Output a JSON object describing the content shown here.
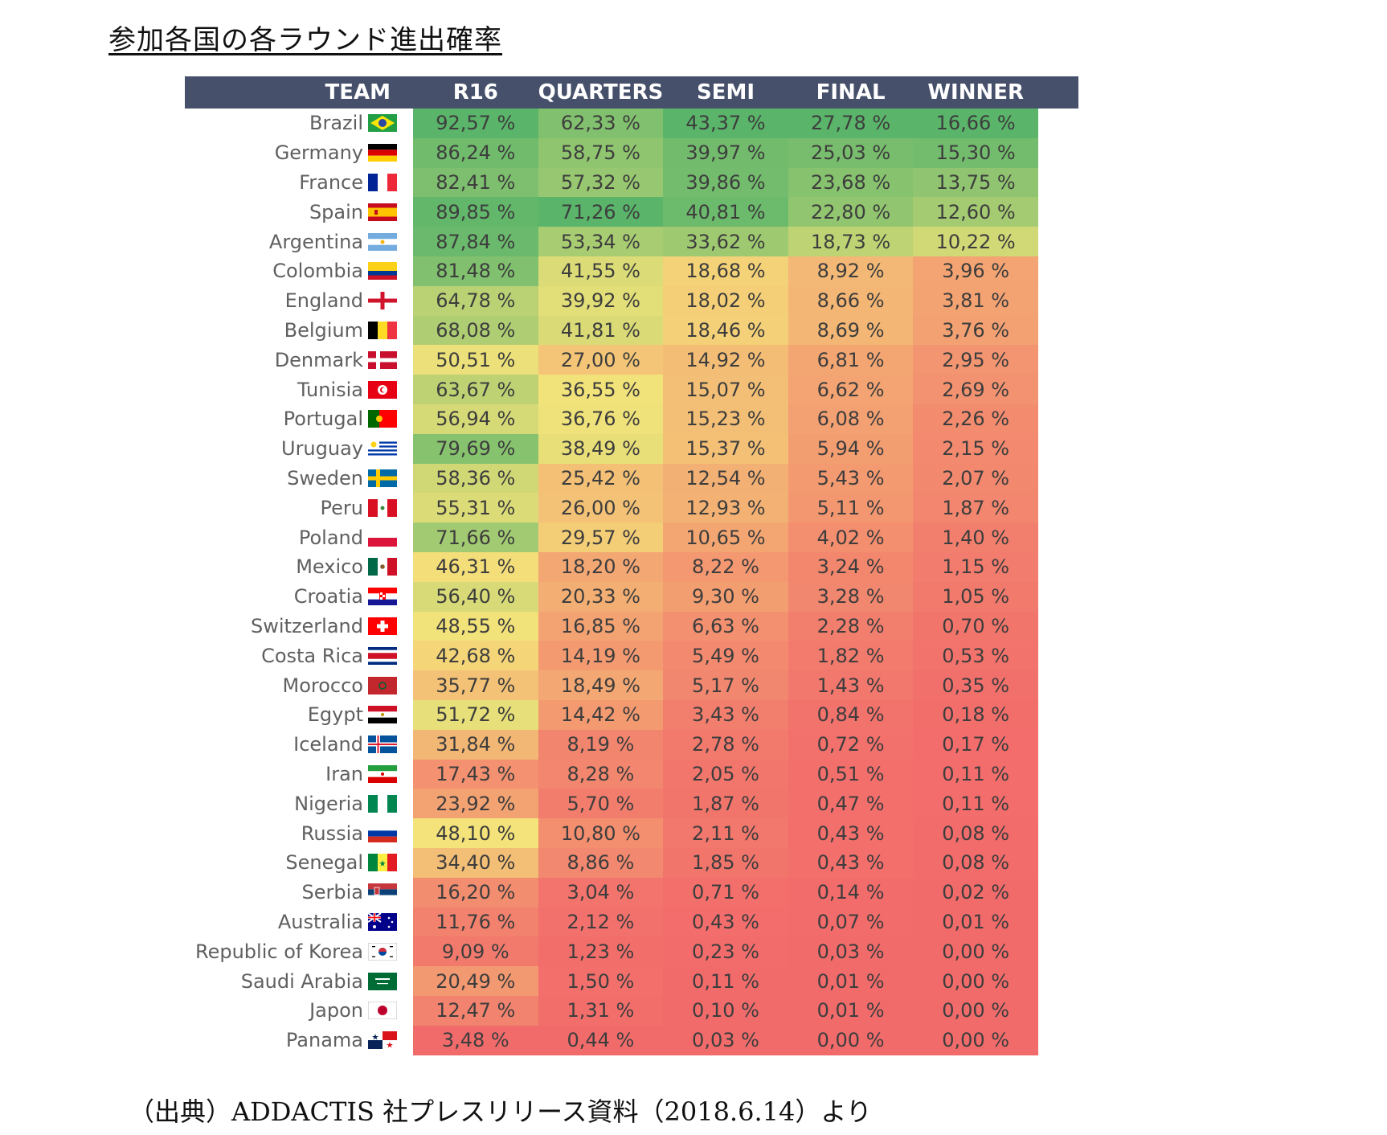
{
  "page": {
    "title": "参加各国の各ラウンド進出確率",
    "source": "（出典）ADDACTIS 社プレスリリース資料（2018.6.14）より"
  },
  "colors": {
    "header_bg": "#46506a",
    "scale_high": "#5ab46a",
    "scale_mid": "#f4e37a",
    "scale_low": "#f26b6b"
  },
  "chart_data": {
    "type": "table",
    "title": "参加各国の各ラウンド進出確率",
    "columns": [
      "TEAM",
      "R16",
      "QUARTERS",
      "SEMI",
      "FINAL",
      "WINNER"
    ],
    "value_suffix": " %",
    "rows": [
      {
        "team": "Brazil",
        "flag": "brazil-flag-icon",
        "values": [
          "92,57",
          "62,33",
          "43,37",
          "27,78",
          "16,66"
        ]
      },
      {
        "team": "Germany",
        "flag": "germany-flag-icon",
        "values": [
          "86,24",
          "58,75",
          "39,97",
          "25,03",
          "15,30"
        ]
      },
      {
        "team": "France",
        "flag": "france-flag-icon",
        "values": [
          "82,41",
          "57,32",
          "39,86",
          "23,68",
          "13,75"
        ]
      },
      {
        "team": "Spain",
        "flag": "spain-flag-icon",
        "values": [
          "89,85",
          "71,26",
          "40,81",
          "22,80",
          "12,60"
        ]
      },
      {
        "team": "Argentina",
        "flag": "argentina-flag-icon",
        "values": [
          "87,84",
          "53,34",
          "33,62",
          "18,73",
          "10,22"
        ]
      },
      {
        "team": "Colombia",
        "flag": "colombia-flag-icon",
        "values": [
          "81,48",
          "41,55",
          "18,68",
          "8,92",
          "3,96"
        ]
      },
      {
        "team": "England",
        "flag": "england-flag-icon",
        "values": [
          "64,78",
          "39,92",
          "18,02",
          "8,66",
          "3,81"
        ]
      },
      {
        "team": "Belgium",
        "flag": "belgium-flag-icon",
        "values": [
          "68,08",
          "41,81",
          "18,46",
          "8,69",
          "3,76"
        ]
      },
      {
        "team": "Denmark",
        "flag": "denmark-flag-icon",
        "values": [
          "50,51",
          "27,00",
          "14,92",
          "6,81",
          "2,95"
        ]
      },
      {
        "team": "Tunisia",
        "flag": "tunisia-flag-icon",
        "values": [
          "63,67",
          "36,55",
          "15,07",
          "6,62",
          "2,69"
        ]
      },
      {
        "team": "Portugal",
        "flag": "portugal-flag-icon",
        "values": [
          "56,94",
          "36,76",
          "15,23",
          "6,08",
          "2,26"
        ]
      },
      {
        "team": "Uruguay",
        "flag": "uruguay-flag-icon",
        "values": [
          "79,69",
          "38,49",
          "15,37",
          "5,94",
          "2,15"
        ]
      },
      {
        "team": "Sweden",
        "flag": "sweden-flag-icon",
        "values": [
          "58,36",
          "25,42",
          "12,54",
          "5,43",
          "2,07"
        ]
      },
      {
        "team": "Peru",
        "flag": "peru-flag-icon",
        "values": [
          "55,31",
          "26,00",
          "12,93",
          "5,11",
          "1,87"
        ]
      },
      {
        "team": "Poland",
        "flag": "poland-flag-icon",
        "values": [
          "71,66",
          "29,57",
          "10,65",
          "4,02",
          "1,40"
        ]
      },
      {
        "team": "Mexico",
        "flag": "mexico-flag-icon",
        "values": [
          "46,31",
          "18,20",
          "8,22",
          "3,24",
          "1,15"
        ]
      },
      {
        "team": "Croatia",
        "flag": "croatia-flag-icon",
        "values": [
          "56,40",
          "20,33",
          "9,30",
          "3,28",
          "1,05"
        ]
      },
      {
        "team": "Switzerland",
        "flag": "switzerland-flag-icon",
        "values": [
          "48,55",
          "16,85",
          "6,63",
          "2,28",
          "0,70"
        ]
      },
      {
        "team": "Costa Rica",
        "flag": "costa-rica-flag-icon",
        "values": [
          "42,68",
          "14,19",
          "5,49",
          "1,82",
          "0,53"
        ]
      },
      {
        "team": "Morocco",
        "flag": "morocco-flag-icon",
        "values": [
          "35,77",
          "18,49",
          "5,17",
          "1,43",
          "0,35"
        ]
      },
      {
        "team": "Egypt",
        "flag": "egypt-flag-icon",
        "values": [
          "51,72",
          "14,42",
          "3,43",
          "0,84",
          "0,18"
        ]
      },
      {
        "team": "Iceland",
        "flag": "iceland-flag-icon",
        "values": [
          "31,84",
          "8,19",
          "2,78",
          "0,72",
          "0,17"
        ]
      },
      {
        "team": "Iran",
        "flag": "iran-flag-icon",
        "values": [
          "17,43",
          "8,28",
          "2,05",
          "0,51",
          "0,11"
        ]
      },
      {
        "team": "Nigeria",
        "flag": "nigeria-flag-icon",
        "values": [
          "23,92",
          "5,70",
          "1,87",
          "0,47",
          "0,11"
        ]
      },
      {
        "team": "Russia",
        "flag": "russia-flag-icon",
        "values": [
          "48,10",
          "10,80",
          "2,11",
          "0,43",
          "0,08"
        ]
      },
      {
        "team": "Senegal",
        "flag": "senegal-flag-icon",
        "values": [
          "34,40",
          "8,86",
          "1,85",
          "0,43",
          "0,08"
        ]
      },
      {
        "team": "Serbia",
        "flag": "serbia-flag-icon",
        "values": [
          "16,20",
          "3,04",
          "0,71",
          "0,14",
          "0,02"
        ]
      },
      {
        "team": "Australia",
        "flag": "australia-flag-icon",
        "values": [
          "11,76",
          "2,12",
          "0,43",
          "0,07",
          "0,01"
        ]
      },
      {
        "team": "Republic of Korea",
        "flag": "korea-flag-icon",
        "values": [
          "9,09",
          "1,23",
          "0,23",
          "0,03",
          "0,00"
        ]
      },
      {
        "team": "Saudi Arabia",
        "flag": "saudi-arabia-flag-icon",
        "values": [
          "20,49",
          "1,50",
          "0,11",
          "0,01",
          "0,00"
        ]
      },
      {
        "team": "Japon",
        "flag": "japan-flag-icon",
        "values": [
          "12,47",
          "1,31",
          "0,10",
          "0,01",
          "0,00"
        ]
      },
      {
        "team": "Panama",
        "flag": "panama-flag-icon",
        "values": [
          "3,48",
          "0,44",
          "0,03",
          "0,00",
          "0,00"
        ]
      }
    ]
  }
}
